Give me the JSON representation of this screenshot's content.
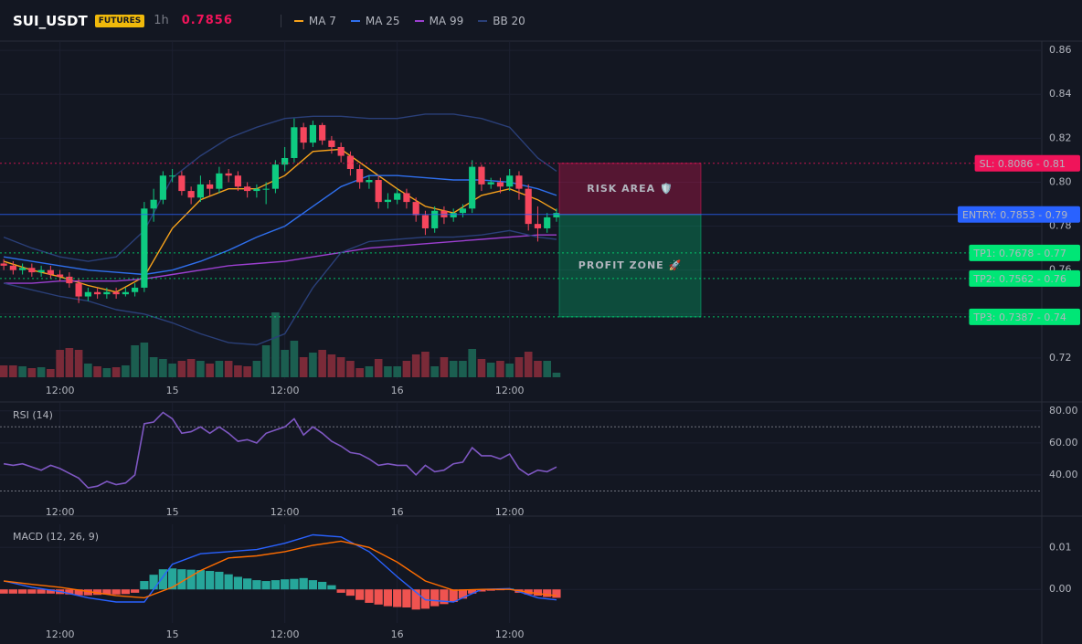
{
  "chart_data": [
    {
      "type": "candlestick",
      "title": "SUI_USDT",
      "badge": "FUTURES",
      "interval": "1h",
      "last_price": 0.7856,
      "xlim": [
        -0.4,
        110.8
      ],
      "xticks": [
        {
          "value": 6,
          "label": "12:00"
        },
        {
          "value": 18,
          "label": "15"
        },
        {
          "value": 30,
          "label": "12:00"
        },
        {
          "value": 42,
          "label": "16"
        },
        {
          "value": 54,
          "label": "12:00"
        }
      ],
      "ylim": [
        0.7104,
        0.8642
      ],
      "yticks": [
        0.86,
        0.84,
        0.82,
        {
          "value": 0.8,
          "label": "0.80"
        },
        0.78,
        0.76,
        0.74,
        0.72
      ],
      "grid": true,
      "up_color": "#0ecb81",
      "down_color": "#f6465d",
      "open": [
        0.763,
        0.762,
        0.76,
        0.761,
        0.759,
        0.76,
        0.758,
        0.757,
        0.754,
        0.748,
        0.75,
        0.749,
        0.75,
        0.749,
        0.75,
        0.752,
        0.788,
        0.792,
        0.803,
        0.803,
        0.796,
        0.793,
        0.799,
        0.797,
        0.804,
        0.803,
        0.798,
        0.796,
        0.797,
        0.797,
        0.808,
        0.811,
        0.825,
        0.818,
        0.826,
        0.819,
        0.816,
        0.812,
        0.806,
        0.8,
        0.801,
        0.791,
        0.792,
        0.795,
        0.791,
        0.785,
        0.779,
        0.787,
        0.784,
        0.786,
        0.788,
        0.807,
        0.799,
        0.8,
        0.798,
        0.803,
        0.797,
        0.781,
        0.779,
        0.784
      ],
      "high": [
        0.765,
        0.764,
        0.763,
        0.763,
        0.762,
        0.762,
        0.76,
        0.759,
        0.756,
        0.752,
        0.752,
        0.752,
        0.752,
        0.752,
        0.754,
        0.791,
        0.797,
        0.805,
        0.806,
        0.805,
        0.798,
        0.803,
        0.801,
        0.807,
        0.806,
        0.805,
        0.8,
        0.799,
        0.8,
        0.81,
        0.816,
        0.829,
        0.827,
        0.828,
        0.827,
        0.821,
        0.818,
        0.814,
        0.808,
        0.803,
        0.803,
        0.795,
        0.797,
        0.797,
        0.793,
        0.787,
        0.789,
        0.789,
        0.788,
        0.79,
        0.81,
        0.808,
        0.802,
        0.802,
        0.806,
        0.805,
        0.799,
        0.789,
        0.786,
        0.788
      ],
      "low": [
        0.76,
        0.758,
        0.758,
        0.757,
        0.757,
        0.756,
        0.755,
        0.752,
        0.745,
        0.746,
        0.747,
        0.747,
        0.747,
        0.748,
        0.748,
        0.75,
        0.782,
        0.79,
        0.8,
        0.794,
        0.79,
        0.791,
        0.794,
        0.795,
        0.8,
        0.796,
        0.793,
        0.793,
        0.79,
        0.795,
        0.805,
        0.809,
        0.815,
        0.816,
        0.817,
        0.813,
        0.809,
        0.803,
        0.797,
        0.797,
        0.788,
        0.788,
        0.79,
        0.788,
        0.782,
        0.776,
        0.777,
        0.781,
        0.782,
        0.784,
        0.786,
        0.796,
        0.797,
        0.795,
        0.796,
        0.792,
        0.778,
        0.773,
        0.777,
        0.782
      ],
      "close": [
        0.762,
        0.76,
        0.761,
        0.759,
        0.76,
        0.758,
        0.757,
        0.754,
        0.748,
        0.75,
        0.749,
        0.75,
        0.749,
        0.75,
        0.752,
        0.788,
        0.792,
        0.803,
        0.803,
        0.796,
        0.793,
        0.799,
        0.797,
        0.804,
        0.803,
        0.798,
        0.796,
        0.797,
        0.797,
        0.808,
        0.811,
        0.825,
        0.818,
        0.826,
        0.819,
        0.816,
        0.812,
        0.806,
        0.8,
        0.801,
        0.791,
        0.792,
        0.795,
        0.791,
        0.785,
        0.779,
        0.787,
        0.784,
        0.786,
        0.788,
        0.807,
        0.799,
        0.8,
        0.798,
        0.803,
        0.797,
        0.781,
        0.779,
        0.784,
        0.786
      ],
      "volume": {
        "vlim": [
          0,
          100
        ],
        "up_color": "#1b5e50",
        "down_color": "#7a2a38",
        "values": [
          13,
          13,
          12,
          10,
          11,
          9,
          30,
          32,
          30,
          15,
          12,
          10,
          11,
          13,
          35,
          38,
          22,
          20,
          15,
          18,
          20,
          18,
          15,
          18,
          18,
          13,
          12,
          18,
          35,
          71,
          30,
          40,
          22,
          27,
          30,
          25,
          22,
          18,
          10,
          12,
          20,
          12,
          12,
          18,
          25,
          28,
          12,
          22,
          18,
          18,
          31,
          20,
          16,
          18,
          15,
          22,
          28,
          18,
          18,
          5
        ]
      },
      "series": [
        {
          "name": "MA 7",
          "color": "#f7a21b",
          "x": [
            0,
            3,
            6,
            9,
            12,
            15,
            18,
            21,
            24,
            27,
            30,
            33,
            36,
            39,
            42,
            45,
            48,
            51,
            54,
            57,
            59
          ],
          "values": [
            0.764,
            0.76,
            0.757,
            0.753,
            0.75,
            0.757,
            0.779,
            0.792,
            0.797,
            0.797,
            0.803,
            0.814,
            0.815,
            0.806,
            0.797,
            0.789,
            0.786,
            0.794,
            0.797,
            0.792,
            0.787
          ]
        },
        {
          "name": "MA 25",
          "color": "#2f6fed",
          "x": [
            0,
            3,
            6,
            9,
            12,
            15,
            18,
            21,
            24,
            27,
            30,
            33,
            36,
            39,
            42,
            45,
            48,
            51,
            54,
            57,
            59
          ],
          "values": [
            0.766,
            0.764,
            0.762,
            0.76,
            0.759,
            0.758,
            0.76,
            0.764,
            0.769,
            0.775,
            0.78,
            0.789,
            0.798,
            0.803,
            0.803,
            0.802,
            0.801,
            0.801,
            0.8,
            0.797,
            0.794
          ]
        },
        {
          "name": "MA 99",
          "color": "#9c3fd0",
          "x": [
            0,
            3,
            6,
            9,
            12,
            15,
            18,
            21,
            24,
            27,
            30,
            33,
            36,
            39,
            42,
            45,
            48,
            51,
            54,
            57,
            59
          ],
          "values": [
            0.754,
            0.754,
            0.755,
            0.755,
            0.755,
            0.756,
            0.758,
            0.76,
            0.762,
            0.763,
            0.764,
            0.766,
            0.768,
            0.77,
            0.771,
            0.772,
            0.773,
            0.774,
            0.775,
            0.776,
            0.776
          ]
        },
        {
          "name": "BB 20",
          "color": "#2a3f78",
          "x": [
            0,
            3,
            6,
            9,
            12,
            15,
            18,
            21,
            24,
            27,
            30,
            33,
            36,
            39,
            42,
            45,
            48,
            51,
            54,
            57,
            59
          ],
          "upper": [
            0.775,
            0.77,
            0.766,
            0.764,
            0.766,
            0.778,
            0.802,
            0.812,
            0.82,
            0.825,
            0.829,
            0.83,
            0.83,
            0.829,
            0.829,
            0.831,
            0.831,
            0.829,
            0.825,
            0.811,
            0.805
          ],
          "lower": [
            0.754,
            0.751,
            0.748,
            0.746,
            0.742,
            0.74,
            0.736,
            0.731,
            0.727,
            0.726,
            0.731,
            0.752,
            0.768,
            0.773,
            0.774,
            0.775,
            0.775,
            0.776,
            0.778,
            0.775,
            0.774
          ]
        }
      ],
      "levels": [
        {
          "value": 0.8086,
          "tag": "SL: 0.8086 - 0.81",
          "color": "#f0145a",
          "text_color": "#ffffff"
        },
        {
          "value": 0.7853,
          "tag": "ENTRY: 0.7853 - 0.79",
          "color": "#2962ff",
          "text_color": "#ffffff"
        },
        {
          "value": 0.7678,
          "tag": "TP1: 0.7678 - 0.77",
          "color": "#00e676",
          "text_color": "#0b1a12"
        },
        {
          "value": 0.7562,
          "tag": "TP2: 0.7562 - 0.76",
          "color": "#00e676",
          "text_color": "#0b1a12"
        },
        {
          "value": 0.7387,
          "tag": "TP3: 0.7387 - 0.74",
          "color": "#00e676",
          "text_color": "#0b1a12"
        }
      ],
      "zones": [
        {
          "label": "RISK AREA 🛡️",
          "from": 0.8086,
          "to": 0.7853,
          "color": "#f0145a",
          "text_color": "#ff4f8b"
        },
        {
          "label": "PROFIT ZONE 🚀",
          "from": 0.7853,
          "to": 0.7387,
          "color": "#00c87a",
          "text_color": "#19e68c"
        }
      ]
    },
    {
      "type": "line",
      "title": "RSI (14)",
      "color": "#7e57c2",
      "xlim": [
        -0.4,
        110.8
      ],
      "xticks": [
        {
          "value": 6,
          "label": "12:00"
        },
        {
          "value": 18,
          "label": "15"
        },
        {
          "value": 30,
          "label": "12:00"
        },
        {
          "value": 42,
          "label": "16"
        },
        {
          "value": 54,
          "label": "12:00"
        }
      ],
      "ylim": [
        24,
        85
      ],
      "yticks": [
        {
          "value": 80,
          "label": "80.00"
        },
        {
          "value": 60,
          "label": "60.00"
        },
        {
          "value": 40,
          "label": "40.00"
        }
      ],
      "bands": [
        70,
        30
      ],
      "grid": true,
      "values": [
        47,
        46,
        47,
        45,
        43,
        46,
        44,
        41,
        38,
        32,
        33,
        36,
        34,
        35,
        40,
        72,
        73,
        79,
        75,
        66,
        67,
        70,
        66,
        70,
        66,
        61,
        62,
        60,
        66,
        68,
        70,
        75,
        65,
        70,
        66,
        61,
        58,
        54,
        53,
        50,
        46,
        47,
        46,
        46,
        40,
        46,
        42,
        43,
        47,
        48,
        57,
        52,
        52,
        50,
        53,
        44,
        40,
        43,
        42,
        45
      ]
    },
    {
      "type": "bar",
      "title": "MACD (12, 26, 9)",
      "pos_color": "#26a69a",
      "neg_color": "#ef5350",
      "xlim": [
        -0.4,
        110.8
      ],
      "xticks": [
        {
          "value": 6,
          "label": "12:00"
        },
        {
          "value": 18,
          "label": "15"
        },
        {
          "value": 30,
          "label": "12:00"
        },
        {
          "value": 42,
          "label": "16"
        },
        {
          "value": 54,
          "label": "12:00"
        }
      ],
      "ylim": [
        -0.008,
        0.0155
      ],
      "yticks": [
        0.01,
        {
          "value": 0,
          "label": "0.00"
        }
      ],
      "grid": true,
      "values": [
        -0.001,
        -0.001,
        -0.001,
        -0.001,
        -0.001,
        -0.001,
        -0.0011,
        -0.0012,
        -0.0014,
        -0.0014,
        -0.0013,
        -0.0012,
        -0.0012,
        -0.0011,
        -0.0008,
        0.002,
        0.0035,
        0.0048,
        0.005,
        0.0048,
        0.0047,
        0.0046,
        0.0044,
        0.0042,
        0.0036,
        0.003,
        0.0026,
        0.0022,
        0.002,
        0.0022,
        0.0024,
        0.0025,
        0.0027,
        0.0022,
        0.0018,
        0.001,
        -0.0008,
        -0.0015,
        -0.0025,
        -0.0032,
        -0.0036,
        -0.004,
        -0.0042,
        -0.0043,
        -0.0048,
        -0.0046,
        -0.004,
        -0.0035,
        -0.003,
        -0.0022,
        -0.001,
        -0.0005,
        -0.0003,
        -0.0002,
        0.0002,
        -0.0008,
        -0.0012,
        -0.0015,
        -0.0018,
        -0.002
      ],
      "series": [
        {
          "name": "MACD",
          "color": "#2962ff",
          "x": [
            0,
            3,
            6,
            9,
            12,
            15,
            18,
            21,
            24,
            27,
            30,
            33,
            36,
            39,
            42,
            45,
            48,
            51,
            54,
            57,
            59
          ],
          "values": [
            0.002,
            0.0005,
            -0.0005,
            -0.002,
            -0.003,
            -0.003,
            0.006,
            0.0085,
            0.009,
            0.0095,
            0.011,
            0.013,
            0.0125,
            0.009,
            0.003,
            -0.0025,
            -0.003,
            0.0,
            0.0002,
            -0.002,
            -0.0025
          ]
        },
        {
          "name": "Signal",
          "color": "#ff6d00",
          "x": [
            0,
            3,
            6,
            9,
            12,
            15,
            18,
            21,
            24,
            27,
            30,
            33,
            36,
            39,
            42,
            45,
            48,
            51,
            54,
            57,
            59
          ],
          "values": [
            0.002,
            0.0012,
            0.0005,
            -0.0005,
            -0.0015,
            -0.002,
            0.0005,
            0.0045,
            0.0075,
            0.008,
            0.009,
            0.0105,
            0.0115,
            0.01,
            0.0065,
            0.002,
            -0.0002,
            0.0,
            0.0,
            -0.001,
            -0.0015
          ]
        }
      ]
    }
  ]
}
